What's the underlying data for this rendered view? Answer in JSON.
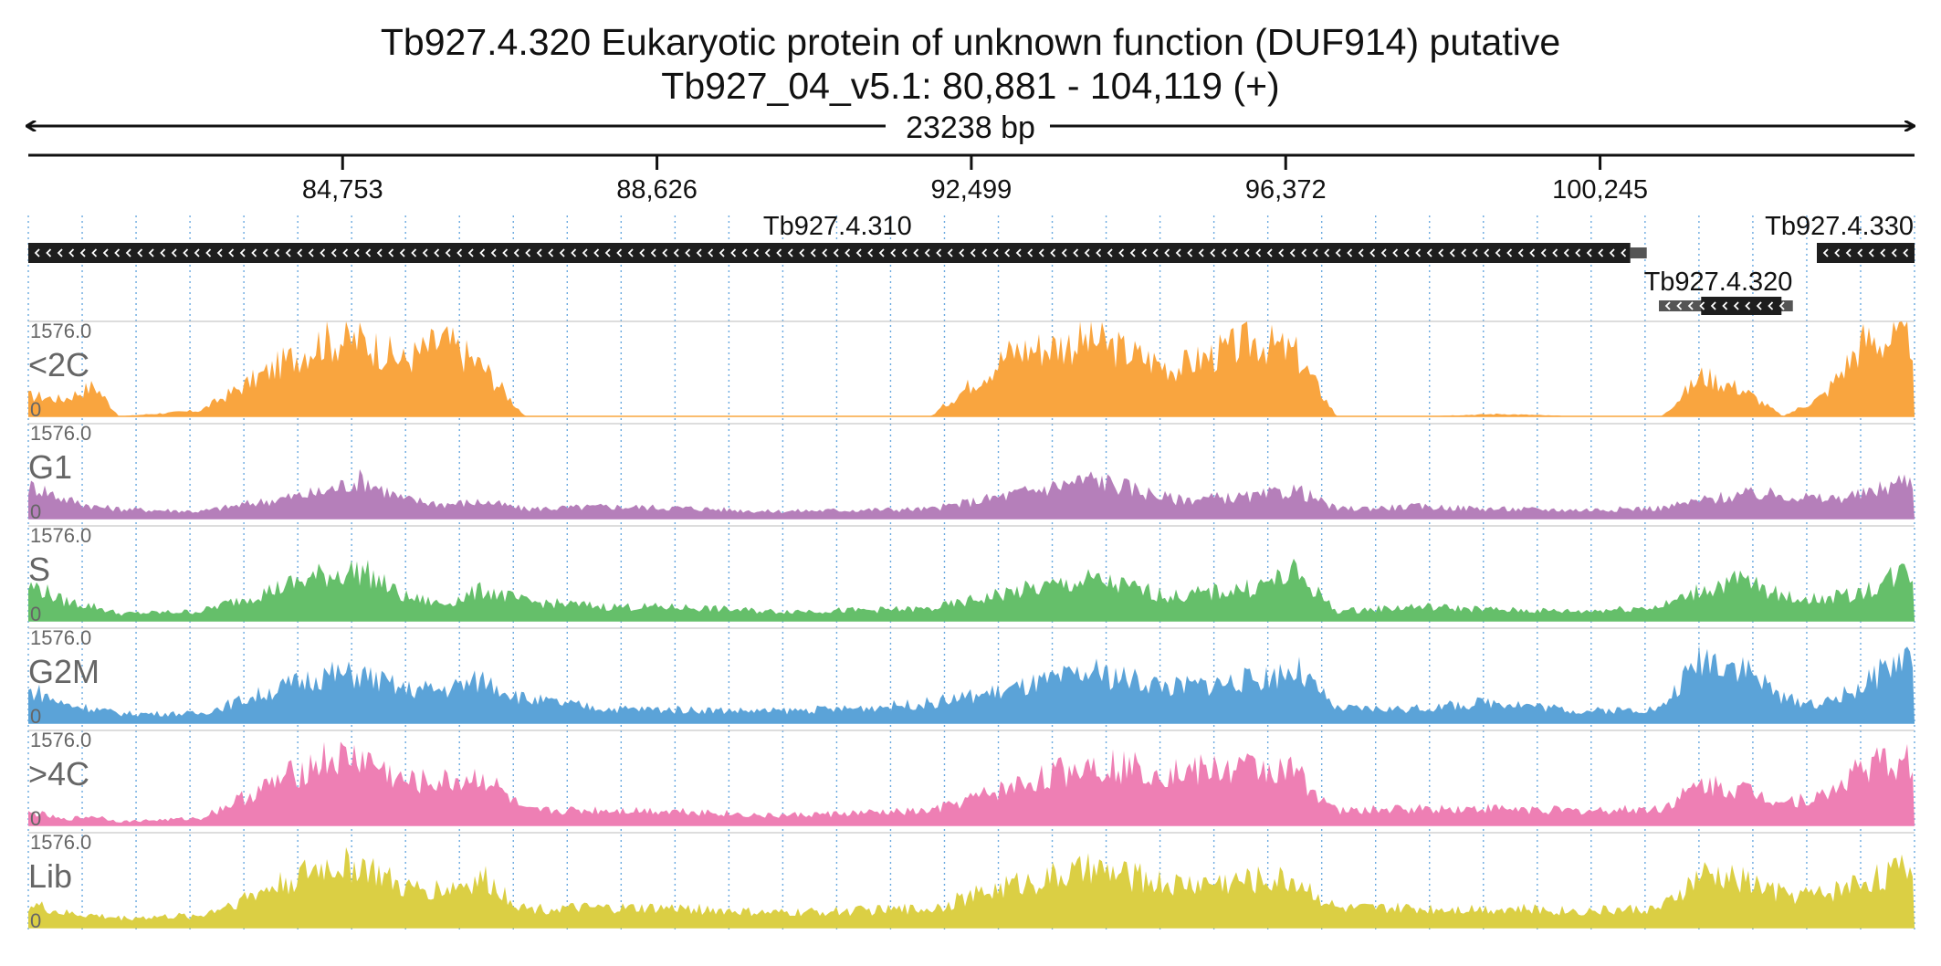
{
  "header": {
    "title": "Tb927.4.320  Eukaryotic protein of unknown function (DUF914)  putative",
    "subtitle": "Tb927_04_v5.1: 80,881 - 104,119 (+)",
    "span_label": "23238 bp"
  },
  "axis": {
    "start": 80881,
    "end": 104119,
    "ticks": [
      {
        "pos": 84753,
        "label": "84,753"
      },
      {
        "pos": 88626,
        "label": "88,626"
      },
      {
        "pos": 92499,
        "label": "92,499"
      },
      {
        "pos": 96372,
        "label": "96,372"
      },
      {
        "pos": 100245,
        "label": "100,245"
      }
    ]
  },
  "genes": [
    {
      "name": "Tb927.4.310",
      "strand": "-",
      "start": 80881,
      "end": 100820
    },
    {
      "name": "Tb927.4.320",
      "strand": "-",
      "start": 100970,
      "end": 102620,
      "cds_start": 101490,
      "cds_end": 102480
    },
    {
      "name": "Tb927.4.330",
      "strand": "-",
      "start": 102880,
      "end": 104119
    }
  ],
  "colors": {
    "<2C": "#f9a53f",
    "G1": "#b57fba",
    "S": "#65bf6a",
    "G2M": "#5ba3d8",
    ">4C": "#ee7fb4",
    "Lib": "#dbcf44",
    "gene": "#1e1e1e",
    "gene_utr": "#555555",
    "grid": "#5aa0dc"
  },
  "chart_data": {
    "type": "area",
    "x_unit": "bp",
    "xlim": [
      80881,
      104119
    ],
    "ylim": [
      0,
      1576.0
    ],
    "ymax_label": "1576.0",
    "ymin_label": "0",
    "x": [
      81000,
      81300,
      81700,
      82000,
      83000,
      84500,
      85000,
      85500,
      86000,
      86500,
      87000,
      88000,
      89000,
      90000,
      91000,
      92000,
      93000,
      94000,
      95000,
      96000,
      96500,
      97000,
      98000,
      99000,
      100000,
      101000,
      101500,
      102000,
      102500,
      103000,
      103500,
      104000
    ],
    "series": [
      {
        "name": "<2C",
        "values": [
          420,
          350,
          640,
          0,
          120,
          1576,
          1576,
          1150,
          1576,
          1000,
          0,
          0,
          0,
          0,
          0,
          0,
          1350,
          1576,
          1000,
          1576,
          1300,
          0,
          0,
          50,
          0,
          0,
          850,
          560,
          0,
          430,
          1576,
          1576
        ]
      },
      {
        "name": "G1",
        "values": [
          650,
          420,
          250,
          200,
          150,
          550,
          820,
          400,
          300,
          350,
          200,
          250,
          220,
          150,
          180,
          200,
          500,
          830,
          400,
          450,
          600,
          200,
          250,
          200,
          180,
          220,
          380,
          500,
          500,
          400,
          500,
          800
        ]
      },
      {
        "name": "S",
        "values": [
          700,
          420,
          300,
          150,
          200,
          950,
          1050,
          500,
          350,
          650,
          400,
          300,
          280,
          200,
          220,
          250,
          600,
          850,
          500,
          700,
          1000,
          200,
          300,
          230,
          200,
          300,
          650,
          850,
          500,
          450,
          600,
          1050
        ]
      },
      {
        "name": "G2M",
        "values": [
          650,
          400,
          300,
          200,
          200,
          1000,
          1000,
          700,
          700,
          900,
          500,
          300,
          280,
          250,
          300,
          420,
          700,
          1050,
          750,
          900,
          1120,
          300,
          300,
          450,
          250,
          300,
          1400,
          1200,
          500,
          400,
          800,
          1400
        ]
      },
      {
        "name": ">4C",
        "values": [
          250,
          120,
          200,
          80,
          150,
          1350,
          1400,
          900,
          900,
          1000,
          300,
          320,
          300,
          200,
          250,
          300,
          800,
          1300,
          1100,
          1200,
          1100,
          300,
          350,
          350,
          300,
          350,
          850,
          750,
          500,
          600,
          1250,
          1300
        ]
      },
      {
        "name": "Lib",
        "values": [
          450,
          300,
          250,
          200,
          250,
          1250,
          1300,
          800,
          800,
          1000,
          400,
          400,
          400,
          300,
          350,
          400,
          900,
          1200,
          900,
          1000,
          1000,
          400,
          400,
          400,
          350,
          400,
          1100,
          1000,
          700,
          700,
          1000,
          1200
        ]
      }
    ]
  }
}
